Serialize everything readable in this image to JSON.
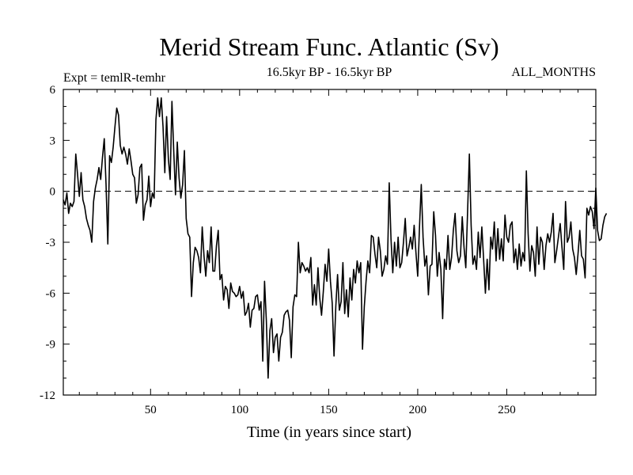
{
  "chart_data": {
    "type": "line",
    "title": "Merid Stream Func. Atlantic (Sv)",
    "subtitle_left": "Expt = temlR-temhr",
    "subtitle_center": "16.5kyr BP - 16.5kyr BP",
    "subtitle_right": "ALL_MONTHS",
    "xlabel": "Time (in years since start)",
    "ylabel": "",
    "xlim": [
      1,
      300
    ],
    "ylim": [
      -12,
      6
    ],
    "x_ticks": [
      50,
      100,
      150,
      200,
      250
    ],
    "y_ticks": [
      6,
      3,
      0,
      -3,
      -6,
      -9,
      -12
    ],
    "reference_line": {
      "y": 0,
      "style": "dashed"
    },
    "series": [
      {
        "name": "Merid Stream Func. Atlantic",
        "x_start": 1,
        "x_step": 1,
        "values": [
          -0.5,
          -0.8,
          -0.1,
          -1.3,
          -0.7,
          -0.9,
          -0.6,
          2.2,
          1.0,
          -0.3,
          1.1,
          -0.5,
          -0.9,
          -1.6,
          -2.0,
          -2.3,
          -3.0,
          -0.6,
          0.2,
          0.7,
          1.4,
          0.7,
          2.0,
          3.1,
          0.4,
          -3.1,
          2.1,
          1.7,
          2.6,
          3.8,
          4.9,
          4.5,
          2.7,
          2.2,
          2.6,
          2.2,
          1.6,
          2.5,
          1.8,
          1.0,
          0.8,
          -0.7,
          -0.2,
          1.4,
          1.6,
          -1.7,
          -0.8,
          -0.5,
          0.9,
          -0.9,
          -0.1,
          -0.4,
          4.2,
          5.5,
          4.4,
          5.5,
          3.8,
          1.1,
          4.4,
          1.9,
          0.7,
          5.3,
          2.4,
          -0.2,
          2.9,
          0.8,
          -0.4,
          0.4,
          2.4,
          -1.6,
          -2.5,
          -2.7,
          -6.2,
          -4.2,
          -3.3,
          -3.5,
          -3.9,
          -4.8,
          -2.1,
          -3.8,
          -5.0,
          -3.5,
          -4.2,
          -2.1,
          -4.7,
          -4.7,
          -3.2,
          -2.3,
          -5.2,
          -4.9,
          -6.4,
          -5.6,
          -5.8,
          -6.9,
          -5.4,
          -5.9,
          -6.0,
          -6.2,
          -6.1,
          -5.6,
          -6.3,
          -5.9,
          -7.3,
          -7.1,
          -6.6,
          -8.0,
          -7.0,
          -6.9,
          -6.2,
          -6.1,
          -7.0,
          -6.5,
          -10.0,
          -5.3,
          -7.6,
          -11.0,
          -8.2,
          -7.5,
          -9.5,
          -8.6,
          -8.4,
          -10.0,
          -8.6,
          -8.3,
          -7.3,
          -7.1,
          -7.0,
          -7.6,
          -9.8,
          -6.8,
          -6.1,
          -6.2,
          -3.0,
          -4.8,
          -4.2,
          -4.4,
          -4.7,
          -4.5,
          -4.8,
          -3.9,
          -6.7,
          -5.5,
          -6.7,
          -4.5,
          -6.3,
          -7.3,
          -5.9,
          -4.3,
          -5.3,
          -3.4,
          -5.3,
          -6.6,
          -9.7,
          -6.8,
          -4.9,
          -7.0,
          -6.5,
          -4.2,
          -7.2,
          -5.8,
          -7.4,
          -5.1,
          -6.4,
          -4.6,
          -5.4,
          -4.1,
          -4.8,
          -4.2,
          -9.3,
          -6.8,
          -5.3,
          -4.1,
          -4.8,
          -2.6,
          -2.7,
          -3.7,
          -4.5,
          -2.7,
          -3.5,
          -5.0,
          -4.6,
          -3.8,
          -4.3,
          0.5,
          -2.8,
          -4.8,
          -3.0,
          -4.4,
          -2.7,
          -4.5,
          -4.2,
          -3.0,
          -1.6,
          -3.8,
          -3.3,
          -2.7,
          -3.4,
          -2.0,
          -3.6,
          -5.0,
          -2.1,
          0.4,
          -2.7,
          -4.4,
          -3.8,
          -6.1,
          -4.4,
          -4.3,
          -1.2,
          -2.6,
          -5.0,
          -3.6,
          -4.6,
          -7.5,
          -4.0,
          -4.6,
          -2.6,
          -4.6,
          -3.9,
          -2.3,
          -1.3,
          -3.5,
          -4.2,
          -3.8,
          -1.5,
          -3.3,
          -4.5,
          -1.2,
          2.2,
          -2.0,
          -4.3,
          -3.8,
          -4.6,
          -2.4,
          -3.9,
          -2.1,
          -4.0,
          -6.0,
          -4.0,
          -5.8,
          -2.7,
          -3.4,
          -1.8,
          -4.1,
          -2.2,
          -4.0,
          -2.8,
          -4.1,
          -1.4,
          -2.7,
          -3.0,
          -2.0,
          -1.8,
          -4.2,
          -3.4,
          -4.6,
          -3.1,
          -4.4,
          -3.6,
          -4.1,
          1.2,
          -2.5,
          -4.7,
          -3.2,
          -3.6,
          -5.0,
          -2.1,
          -4.3,
          -2.7,
          -3.0,
          -4.6,
          -3.2,
          -2.5,
          -3.0,
          -2.4,
          -1.3,
          -4.2,
          -3.5,
          -2.7,
          -1.9,
          -3.3,
          -4.6,
          -0.6,
          -3.0,
          -2.7,
          -1.8,
          -3.4,
          -3.9,
          -4.9,
          -3.7,
          -2.3,
          -3.8,
          -4.0,
          -5.1,
          -1.0,
          -1.4,
          -0.9,
          -1.2,
          -2.2,
          0.2,
          -2.3,
          -2.9,
          -2.8,
          -2.0,
          -1.5,
          -1.3
        ]
      }
    ]
  }
}
